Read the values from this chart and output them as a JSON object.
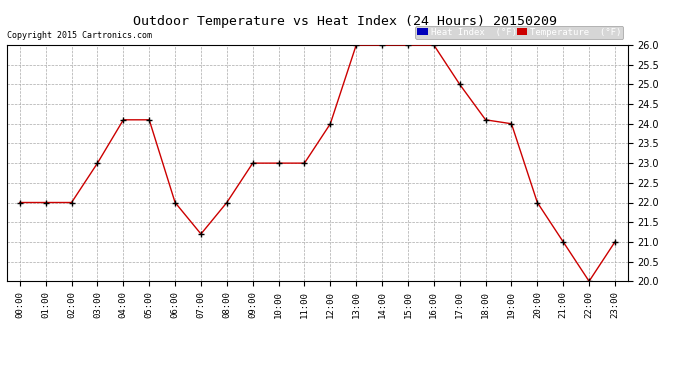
{
  "title": "Outdoor Temperature vs Heat Index (24 Hours) 20150209",
  "copyright": "Copyright 2015 Cartronics.com",
  "x_labels": [
    "00:00",
    "01:00",
    "02:00",
    "03:00",
    "04:00",
    "05:00",
    "06:00",
    "07:00",
    "08:00",
    "09:00",
    "10:00",
    "11:00",
    "12:00",
    "13:00",
    "14:00",
    "15:00",
    "16:00",
    "17:00",
    "18:00",
    "19:00",
    "20:00",
    "21:00",
    "22:00",
    "23:00"
  ],
  "temperature": [
    22.0,
    22.0,
    22.0,
    23.0,
    24.1,
    24.1,
    22.0,
    21.2,
    22.0,
    23.0,
    23.0,
    23.0,
    24.0,
    26.0,
    26.0,
    26.0,
    26.0,
    25.0,
    24.1,
    24.0,
    22.0,
    21.0,
    20.0,
    21.0
  ],
  "ylim": [
    20.0,
    26.0
  ],
  "yticks": [
    20.0,
    20.5,
    21.0,
    21.5,
    22.0,
    22.5,
    23.0,
    23.5,
    24.0,
    24.5,
    25.0,
    25.5,
    26.0
  ],
  "temp_color": "#cc0000",
  "heat_index_color": "#000000",
  "bg_color": "#ffffff",
  "grid_color": "#aaaaaa",
  "legend_heat_bg": "#0000bb",
  "legend_temp_bg": "#cc0000",
  "legend_heat_text": "Heat Index  (°F)",
  "legend_temp_text": "Temperature  (°F)"
}
